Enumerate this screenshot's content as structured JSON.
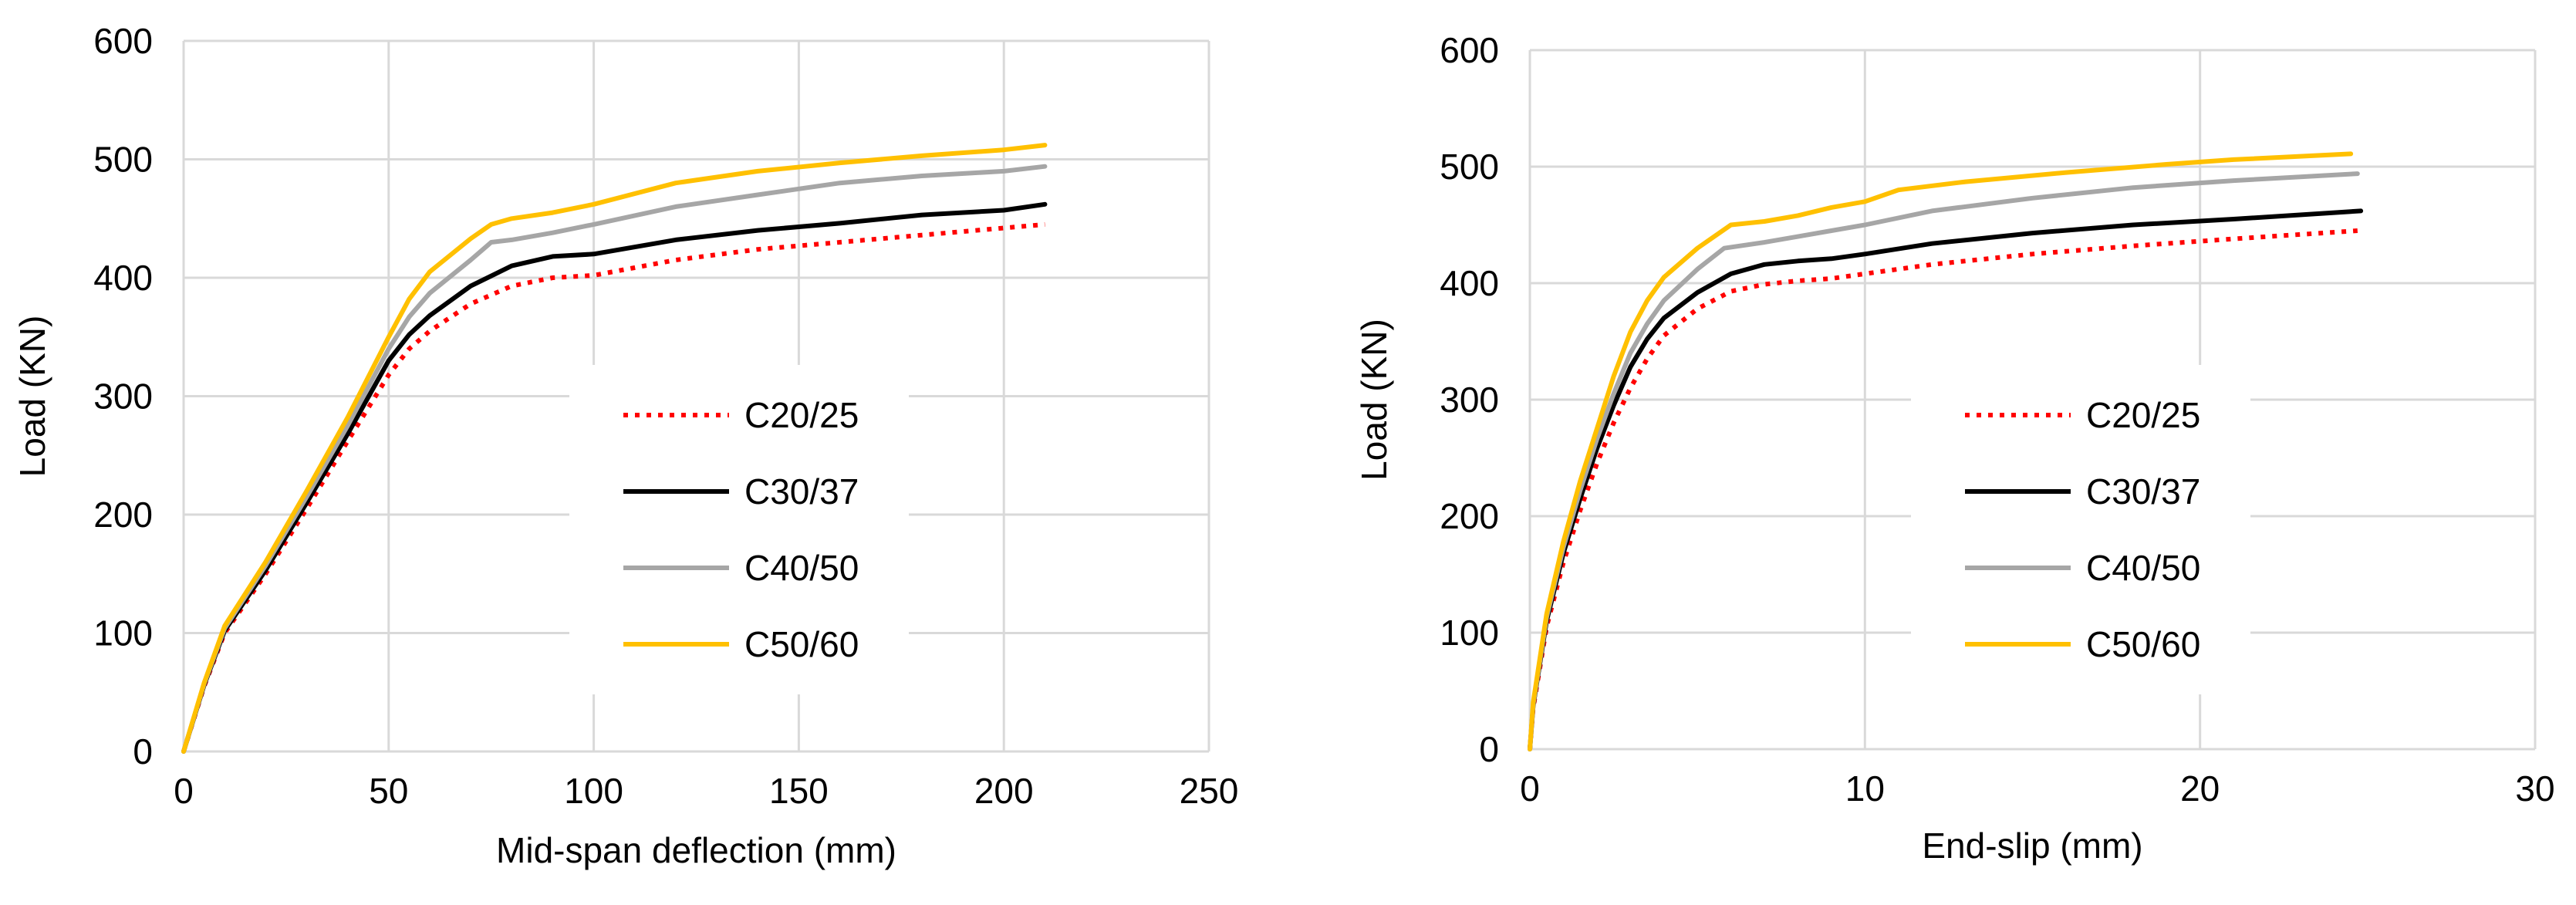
{
  "chart_data": [
    {
      "type": "line",
      "title": "",
      "xlabel": "Mid-span deflection (mm)",
      "ylabel": "Load (KN)",
      "xlim": [
        0,
        250
      ],
      "ylim": [
        0,
        600
      ],
      "xticks": [
        0,
        50,
        100,
        150,
        200,
        250
      ],
      "yticks": [
        0,
        100,
        200,
        300,
        400,
        500,
        600
      ],
      "grid": true,
      "legend_position": "center-right",
      "series": [
        {
          "name": "C20/25",
          "color": "#ff0000",
          "style": "dotted",
          "x": [
            0,
            5,
            10,
            20,
            30,
            40,
            50,
            55,
            60,
            70,
            80,
            90,
            100,
            120,
            140,
            160,
            180,
            200,
            210
          ],
          "y": [
            0,
            55,
            100,
            150,
            205,
            262,
            318,
            340,
            355,
            378,
            393,
            400,
            402,
            415,
            424,
            430,
            436,
            442,
            445
          ]
        },
        {
          "name": "C30/37",
          "color": "#000000",
          "style": "solid",
          "x": [
            0,
            5,
            10,
            20,
            30,
            40,
            50,
            55,
            60,
            70,
            80,
            90,
            100,
            120,
            140,
            160,
            180,
            200,
            210
          ],
          "y": [
            0,
            56,
            102,
            153,
            210,
            268,
            330,
            352,
            368,
            393,
            410,
            418,
            420,
            432,
            440,
            446,
            453,
            457,
            462
          ]
        },
        {
          "name": "C40/50",
          "color": "#a6a6a6",
          "style": "solid",
          "x": [
            0,
            5,
            10,
            20,
            30,
            40,
            50,
            55,
            60,
            70,
            75,
            80,
            90,
            100,
            120,
            140,
            160,
            180,
            200,
            210
          ],
          "y": [
            0,
            57,
            104,
            157,
            215,
            275,
            340,
            367,
            387,
            415,
            430,
            432,
            438,
            445,
            460,
            470,
            480,
            486,
            490,
            494
          ]
        },
        {
          "name": "C50/60",
          "color": "#ffc000",
          "style": "solid",
          "x": [
            0,
            5,
            10,
            20,
            30,
            40,
            50,
            55,
            60,
            70,
            75,
            80,
            90,
            100,
            120,
            140,
            160,
            180,
            200,
            210
          ],
          "y": [
            0,
            58,
            106,
            160,
            220,
            282,
            350,
            382,
            405,
            433,
            445,
            450,
            455,
            462,
            480,
            490,
            497,
            503,
            508,
            512
          ]
        }
      ]
    },
    {
      "type": "line",
      "title": "",
      "xlabel": "End-slip (mm)",
      "ylabel": "Load (KN)",
      "xlim": [
        0,
        30
      ],
      "ylim": [
        0,
        600
      ],
      "xticks": [
        0,
        10,
        20,
        30
      ],
      "yticks": [
        0,
        100,
        200,
        300,
        400,
        500,
        600
      ],
      "grid": true,
      "legend_position": "center-right",
      "series": [
        {
          "name": "C20/25",
          "color": "#ff0000",
          "style": "dotted",
          "x": [
            0,
            0.1,
            0.5,
            1,
            1.5,
            2,
            2.5,
            3,
            3.5,
            4,
            5,
            6,
            7,
            8,
            9,
            10,
            12,
            15,
            18,
            21,
            24.7
          ],
          "y": [
            0,
            35,
            105,
            160,
            205,
            245,
            280,
            310,
            335,
            355,
            378,
            393,
            399,
            402,
            404,
            408,
            416,
            425,
            432,
            438,
            445
          ]
        },
        {
          "name": "C30/37",
          "color": "#000000",
          "style": "solid",
          "x": [
            0,
            0.1,
            0.5,
            1,
            1.5,
            2,
            2.5,
            3,
            3.5,
            4,
            5,
            6,
            7,
            8,
            9,
            10,
            12,
            15,
            18,
            21,
            24.8
          ],
          "y": [
            0,
            37,
            110,
            168,
            215,
            258,
            295,
            328,
            352,
            370,
            392,
            408,
            416,
            419,
            421,
            425,
            434,
            443,
            450,
            455,
            462
          ]
        },
        {
          "name": "C40/50",
          "color": "#a6a6a6",
          "style": "solid",
          "x": [
            0,
            0.1,
            0.5,
            1,
            1.5,
            2,
            2.5,
            3,
            3.5,
            4,
            5,
            5.8,
            7,
            8,
            9,
            10,
            12,
            15,
            18,
            21,
            24.7
          ],
          "y": [
            0,
            38,
            113,
            173,
            222,
            266,
            305,
            340,
            365,
            385,
            412,
            430,
            435,
            440,
            445,
            450,
            462,
            473,
            482,
            488,
            494
          ]
        },
        {
          "name": "C50/60",
          "color": "#ffc000",
          "style": "solid",
          "x": [
            0,
            0.1,
            0.5,
            1,
            1.5,
            2,
            2.5,
            3,
            3.5,
            4,
            5,
            6,
            7,
            8,
            9,
            10,
            11,
            13,
            16,
            19,
            21,
            24.5
          ],
          "y": [
            0,
            40,
            116,
            178,
            230,
            275,
            320,
            358,
            385,
            405,
            430,
            450,
            453,
            458,
            465,
            470,
            480,
            487,
            495,
            502,
            506,
            511
          ]
        }
      ]
    }
  ]
}
